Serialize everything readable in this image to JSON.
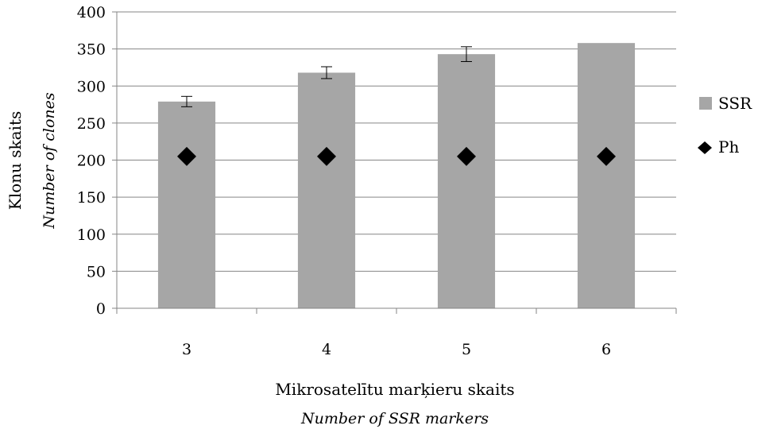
{
  "chart_data": {
    "type": "bar",
    "categories": [
      "3",
      "4",
      "5",
      "6"
    ],
    "series": [
      {
        "name": "SSR",
        "kind": "bar",
        "values": [
          279,
          318,
          343,
          358
        ],
        "error": [
          7,
          8,
          10,
          null
        ],
        "color": "#a6a6a6"
      },
      {
        "name": "Ph",
        "kind": "marker",
        "marker": "diamond",
        "values": [
          205,
          205,
          205,
          205
        ],
        "color": "#000000"
      }
    ],
    "title": "",
    "xlabel": "Mikrosatelītu marķieru skaits",
    "xlabel_en": "Number of SSR markers",
    "ylabel": "Klonu skaits",
    "ylabel_en": "Number of clones",
    "ylim": [
      0,
      400
    ],
    "yticks": [
      0,
      50,
      100,
      150,
      200,
      250,
      300,
      350,
      400
    ],
    "grid": true,
    "legend_position": "right"
  }
}
